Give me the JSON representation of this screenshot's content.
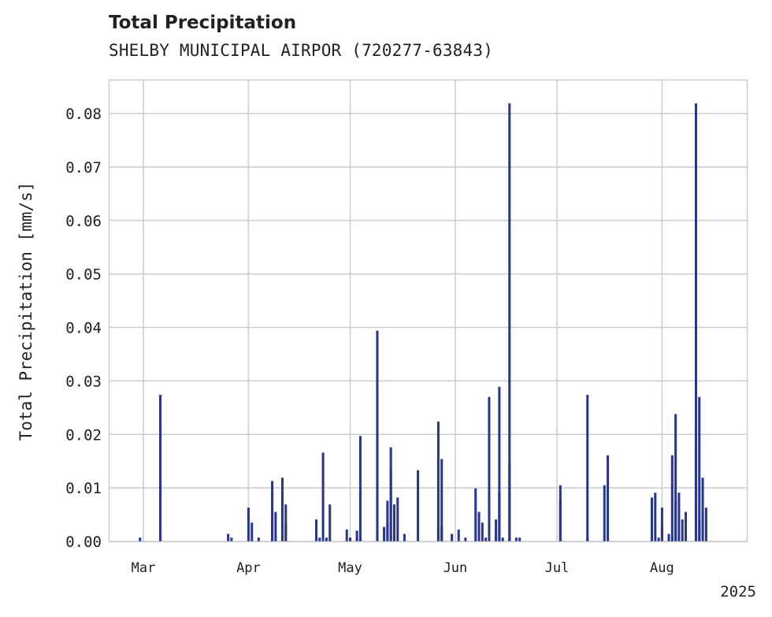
{
  "chart_data": {
    "type": "bar",
    "title": "Total Precipitation",
    "subtitle": "SHELBY MUNICIPAL AIRPOR (720277-63843)",
    "ylabel": "Total Precipitation [mm/s]",
    "xlabel": "",
    "year_label": "2025",
    "xlim": [
      "2025-02-19",
      "2025-08-26"
    ],
    "ylim": [
      0,
      0.0862
    ],
    "yticks": [
      "0.00",
      "0.01",
      "0.02",
      "0.03",
      "0.04",
      "0.05",
      "0.06",
      "0.07",
      "0.08"
    ],
    "xticks": [
      {
        "date": "2025-03-01",
        "label": "Mar"
      },
      {
        "date": "2025-04-01",
        "label": "Apr"
      },
      {
        "date": "2025-05-01",
        "label": "May"
      },
      {
        "date": "2025-06-01",
        "label": "Jun"
      },
      {
        "date": "2025-07-01",
        "label": "Jul"
      },
      {
        "date": "2025-08-01",
        "label": "Aug"
      }
    ],
    "grid": true,
    "bar_color": "#27358f",
    "points": [
      [
        "2025-02-28",
        0.0007
      ],
      [
        "2025-03-06",
        0.0274
      ],
      [
        "2025-03-06",
        0.0007
      ],
      [
        "2025-03-26",
        0.0014
      ],
      [
        "2025-03-27",
        0.0007
      ],
      [
        "2025-04-01",
        0.0063
      ],
      [
        "2025-04-02",
        0.0035
      ],
      [
        "2025-04-04",
        0.0007
      ],
      [
        "2025-04-08",
        0.0043
      ],
      [
        "2025-04-08",
        0.0113
      ],
      [
        "2025-04-09",
        0.0055
      ],
      [
        "2025-04-11",
        0.002
      ],
      [
        "2025-04-11",
        0.0119
      ],
      [
        "2025-04-12",
        0.0069
      ],
      [
        "2025-04-12",
        0.0035
      ],
      [
        "2025-04-21",
        0.0041
      ],
      [
        "2025-04-22",
        0.0007
      ],
      [
        "2025-04-23",
        0.0166
      ],
      [
        "2025-04-24",
        0.0007
      ],
      [
        "2025-04-25",
        0.0069
      ],
      [
        "2025-04-30",
        0.0022
      ],
      [
        "2025-05-01",
        0.0007
      ],
      [
        "2025-05-03",
        0.0007
      ],
      [
        "2025-05-03",
        0.002
      ],
      [
        "2025-05-04",
        0.0197
      ],
      [
        "2025-05-04",
        0.0007
      ],
      [
        "2025-05-09",
        0.0394
      ],
      [
        "2025-05-09",
        0.0211
      ],
      [
        "2025-05-11",
        0.0027
      ],
      [
        "2025-05-12",
        0.0035
      ],
      [
        "2025-05-12",
        0.0076
      ],
      [
        "2025-05-13",
        0.0176
      ],
      [
        "2025-05-13",
        0.0132
      ],
      [
        "2025-05-14",
        0.0069
      ],
      [
        "2025-05-15",
        0.0082
      ],
      [
        "2025-05-17",
        0.0014
      ],
      [
        "2025-05-21",
        0.0133
      ],
      [
        "2025-05-27",
        0.0027
      ],
      [
        "2025-05-27",
        0.0224
      ],
      [
        "2025-05-28",
        0.0154
      ],
      [
        "2025-05-28",
        0.0027
      ],
      [
        "2025-05-31",
        0.0014
      ],
      [
        "2025-06-02",
        0.0022
      ],
      [
        "2025-06-04",
        0.0007
      ],
      [
        "2025-06-07",
        0.0099
      ],
      [
        "2025-06-08",
        0.0055
      ],
      [
        "2025-06-09",
        0.0035
      ],
      [
        "2025-06-10",
        0.0007
      ],
      [
        "2025-06-11",
        0.027
      ],
      [
        "2025-06-13",
        0.002
      ],
      [
        "2025-06-13",
        0.0041
      ],
      [
        "2025-06-14",
        0.0091
      ],
      [
        "2025-06-14",
        0.0289
      ],
      [
        "2025-06-15",
        0.0007
      ],
      [
        "2025-06-17",
        0.0819
      ],
      [
        "2025-06-17",
        0.0148
      ],
      [
        "2025-06-17",
        0.0007
      ],
      [
        "2025-06-19",
        0.0007
      ],
      [
        "2025-06-20",
        0.0007
      ],
      [
        "2025-07-02",
        0.0076
      ],
      [
        "2025-07-02",
        0.0105
      ],
      [
        "2025-07-10",
        0.0274
      ],
      [
        "2025-07-10",
        0.0007
      ],
      [
        "2025-07-15",
        0.0105
      ],
      [
        "2025-07-16",
        0.0161
      ],
      [
        "2025-07-29",
        0.0082
      ],
      [
        "2025-07-30",
        0.0091
      ],
      [
        "2025-07-31",
        0.0007
      ],
      [
        "2025-08-01",
        0.0063
      ],
      [
        "2025-08-01",
        0.0027
      ],
      [
        "2025-08-03",
        0.0014
      ],
      [
        "2025-08-04",
        0.0007
      ],
      [
        "2025-08-04",
        0.0161
      ],
      [
        "2025-08-05",
        0.0238
      ],
      [
        "2025-08-05",
        0.0076
      ],
      [
        "2025-08-06",
        0.0091
      ],
      [
        "2025-08-06",
        0.0007
      ],
      [
        "2025-08-07",
        0.0041
      ],
      [
        "2025-08-08",
        0.0055
      ],
      [
        "2025-08-11",
        0.0177
      ],
      [
        "2025-08-11",
        0.0819
      ],
      [
        "2025-08-12",
        0.027
      ],
      [
        "2025-08-12",
        0.0041
      ],
      [
        "2025-08-13",
        0.0041
      ],
      [
        "2025-08-13",
        0.0119
      ],
      [
        "2025-08-14",
        0.0063
      ]
    ]
  }
}
